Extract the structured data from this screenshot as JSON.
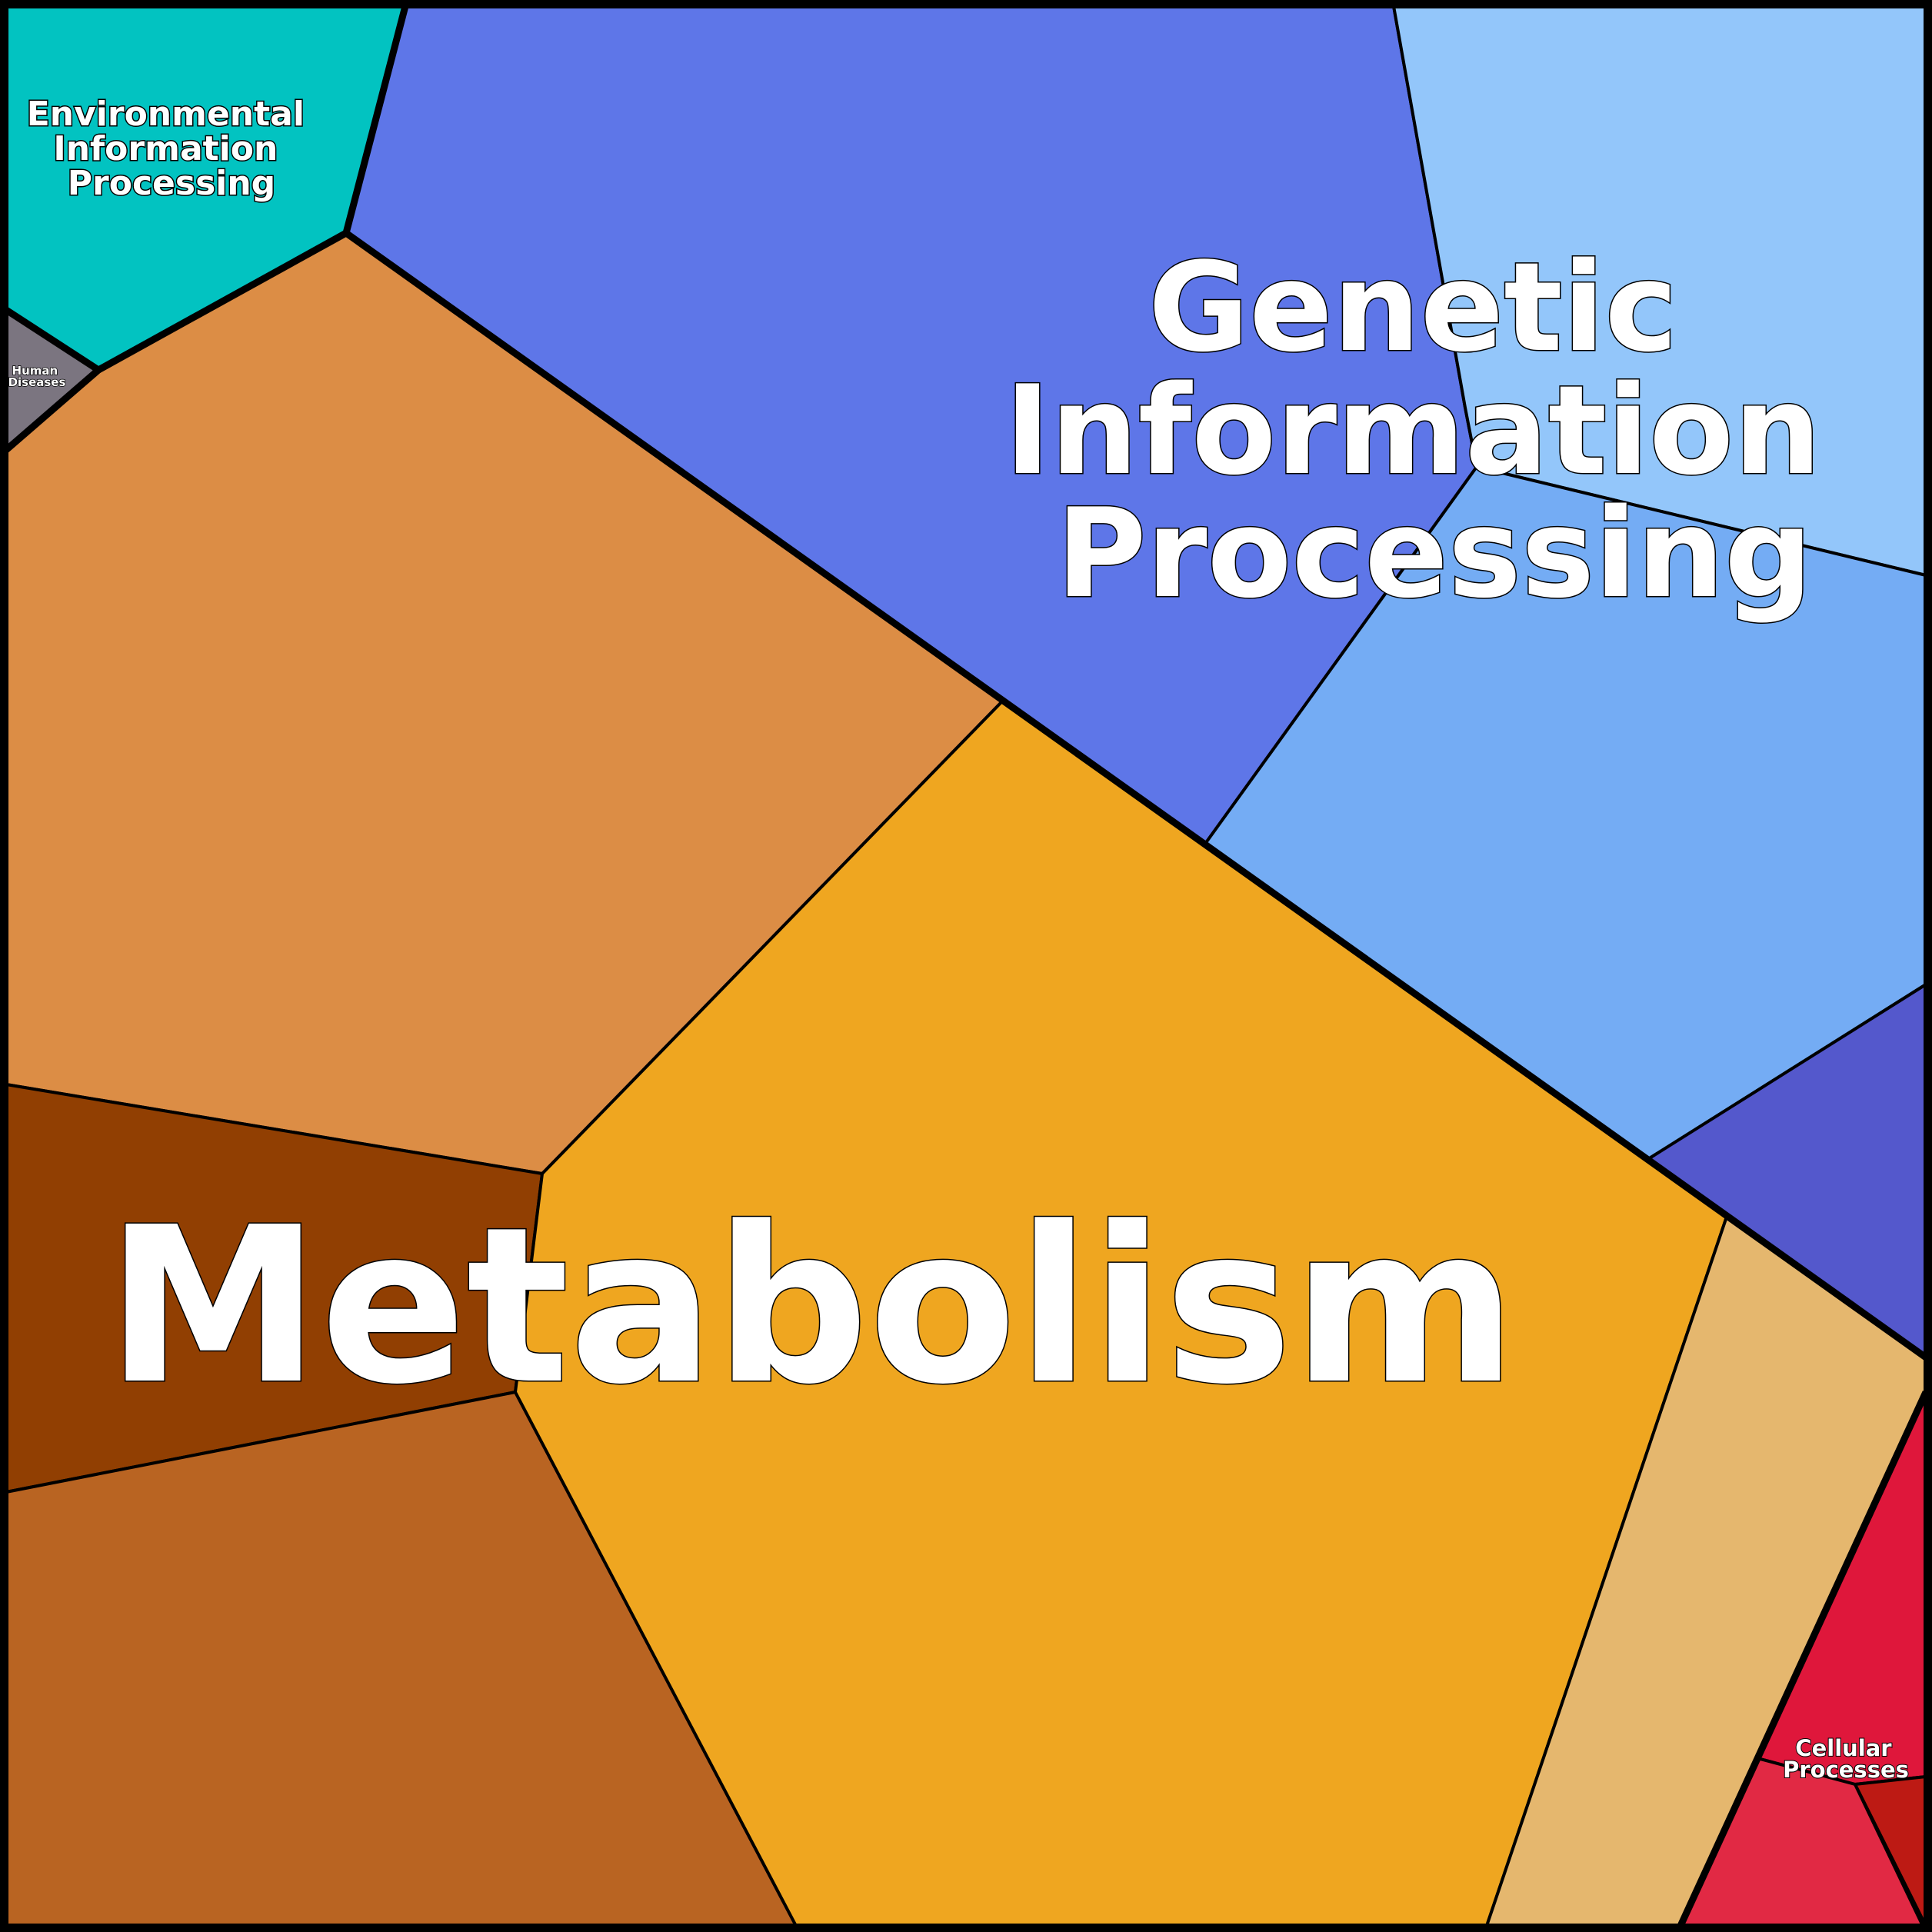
{
  "groups": [
    {
      "name": "Metabolism",
      "colors": [
        "#DC8D45",
        "#913F02",
        "#B96422",
        "#EFA620",
        "#E5B76E"
      ]
    },
    {
      "name": "Genetic Information Processing",
      "colors": [
        "#5E76E8",
        "#93C6FA",
        "#74ACF4",
        "#5458CC"
      ]
    },
    {
      "name": "Environmental Information Processing",
      "colors": [
        "#02C3C1"
      ]
    },
    {
      "name": "Human Diseases",
      "colors": [
        "#7B7580"
      ]
    },
    {
      "name": "Cellular Processes",
      "colors": [
        "#DF173B",
        "#E12944",
        "#BD1A14"
      ]
    }
  ],
  "labels": {
    "metabolism": "Metabolism",
    "genetic": [
      "Genetic",
      "Information",
      "Processing"
    ],
    "environmental": [
      "Environmental",
      "Information",
      "Processing"
    ],
    "human": [
      "Human",
      "Diseases"
    ],
    "cellular": [
      "Cellular",
      "Processes"
    ]
  }
}
